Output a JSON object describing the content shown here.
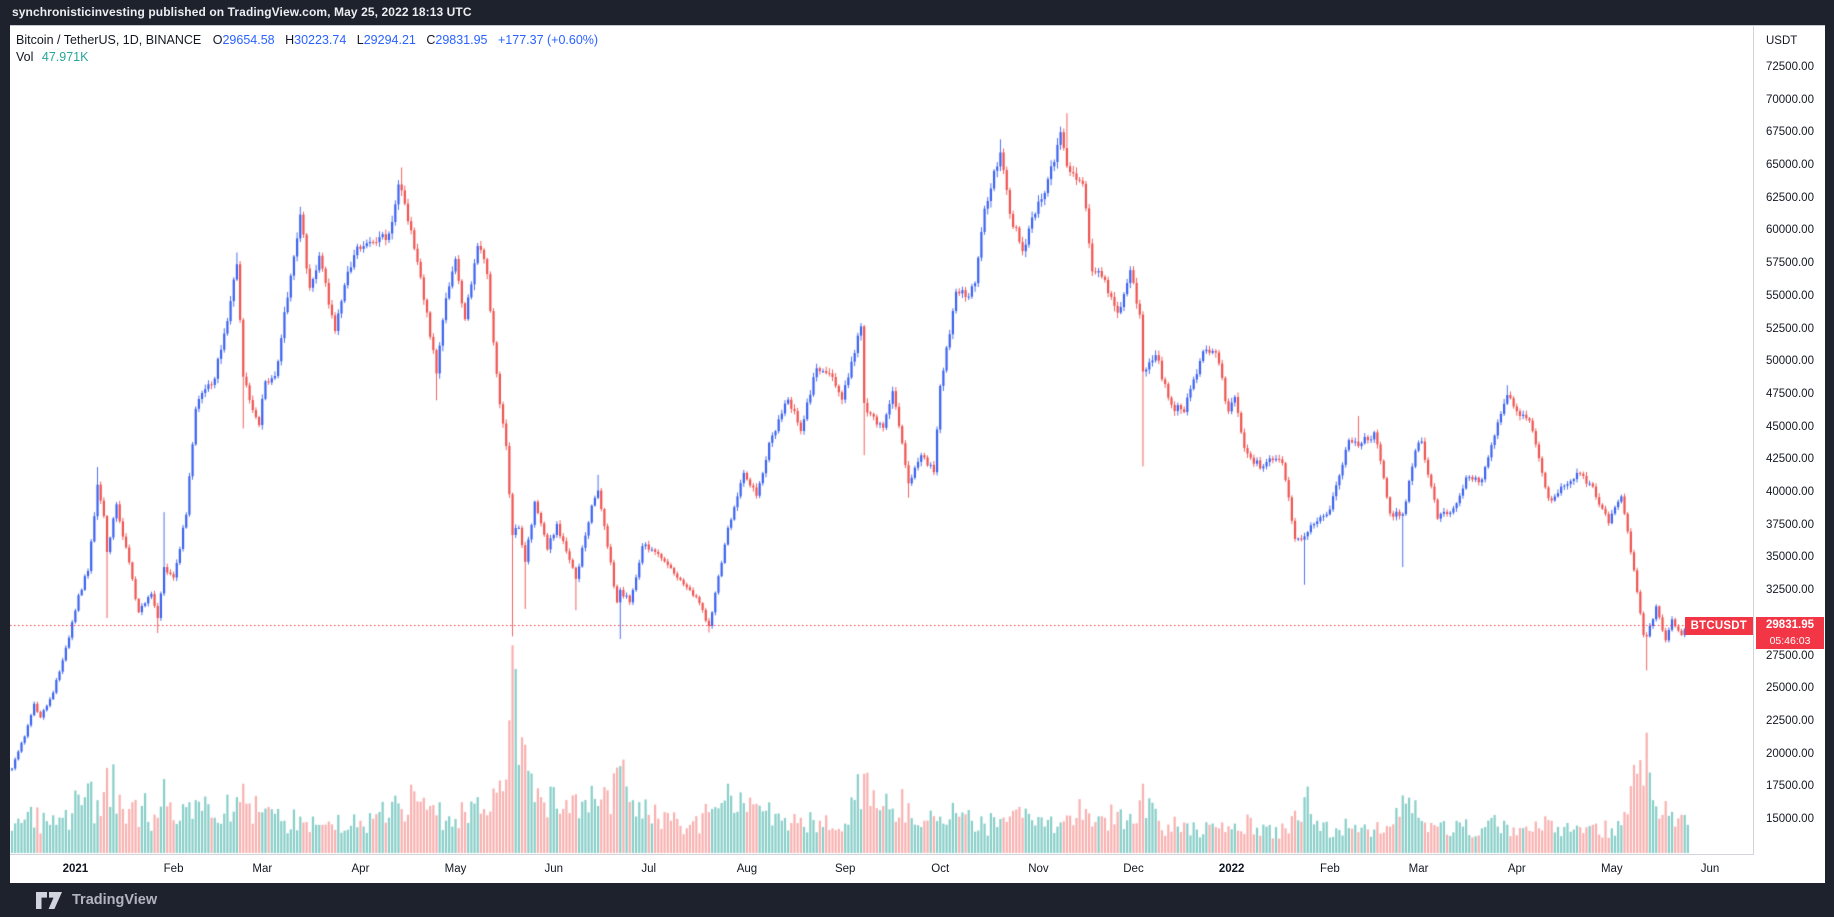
{
  "frame": {
    "attribution": "synchronisticinvesting published on TradingView.com, May 25, 2022 18:13 UTC",
    "footer_brand": "TradingView"
  },
  "legend": {
    "title": "Bitcoin / TetherUS, 1D, BINANCE",
    "ohlc": [
      {
        "k": "O",
        "v": "29654.58"
      },
      {
        "k": "H",
        "v": "30223.74"
      },
      {
        "k": "L",
        "v": "29294.21"
      },
      {
        "k": "C",
        "v": "29831.95"
      }
    ],
    "change": "+177.37 (+0.60%)",
    "vol_label": "Vol",
    "vol_value": "47.971K"
  },
  "price_axis": {
    "currency": "USDT",
    "labels": [
      "72500.00",
      "70000.00",
      "67500.00",
      "65000.00",
      "62500.00",
      "60000.00",
      "57500.00",
      "55000.00",
      "52500.00",
      "50000.00",
      "47500.00",
      "45000.00",
      "42500.00",
      "40000.00",
      "37500.00",
      "35000.00",
      "32500.00",
      "30000.00",
      "27500.00",
      "25000.00",
      "22500.00",
      "20000.00",
      "17500.00",
      "15000.00"
    ],
    "symbol_flag": "BTCUSDT",
    "last_price_label": "29831.95",
    "countdown": "05:46:03"
  },
  "time_axis": {
    "ticks": [
      {
        "label": "2021",
        "date": "2021-01-01",
        "bold": true
      },
      {
        "label": "Feb",
        "date": "2021-02-01",
        "bold": false
      },
      {
        "label": "Mar",
        "date": "2021-03-01",
        "bold": false
      },
      {
        "label": "Apr",
        "date": "2021-04-01",
        "bold": false
      },
      {
        "label": "May",
        "date": "2021-05-01",
        "bold": false
      },
      {
        "label": "Jun",
        "date": "2021-06-01",
        "bold": false
      },
      {
        "label": "Jul",
        "date": "2021-07-01",
        "bold": false
      },
      {
        "label": "Aug",
        "date": "2021-08-01",
        "bold": false
      },
      {
        "label": "Sep",
        "date": "2021-09-01",
        "bold": false
      },
      {
        "label": "Oct",
        "date": "2021-10-01",
        "bold": false
      },
      {
        "label": "Nov",
        "date": "2021-11-01",
        "bold": false
      },
      {
        "label": "Dec",
        "date": "2021-12-01",
        "bold": false
      },
      {
        "label": "2022",
        "date": "2022-01-01",
        "bold": true
      },
      {
        "label": "Feb",
        "date": "2022-02-01",
        "bold": false
      },
      {
        "label": "Mar",
        "date": "2022-03-01",
        "bold": false
      },
      {
        "label": "Apr",
        "date": "2022-04-01",
        "bold": false
      },
      {
        "label": "May",
        "date": "2022-05-01",
        "bold": false
      },
      {
        "label": "Jun",
        "date": "2022-06-01",
        "bold": false
      }
    ]
  },
  "colors": {
    "frame_bg": "#1e222d",
    "candle_up": "#3b62f0",
    "candle_down": "#ef5350",
    "volume_up": "rgba(38,166,154,0.55)",
    "volume_down": "rgba(239,83,80,0.45)",
    "last_price_line": "#f23645",
    "badge_bg": "#f23645",
    "ohlc_value_text": "#2962ff",
    "vol_value_text": "#26a69a",
    "axis_text": "#131722"
  },
  "chart_data": {
    "type": "candlestick",
    "symbol": "BTCUSDT",
    "exchange": "BINANCE",
    "interval": "1D",
    "quote_currency": "USDT",
    "last_price": 29831.95,
    "last_candle": {
      "open": 29654.58,
      "high": 30223.74,
      "low": 29294.21,
      "close": 29831.95,
      "volume_k": 47.971
    },
    "domain": {
      "start_date": "2020-12-12",
      "last_candle_date": "2022-05-25",
      "right_pad_days": 19
    },
    "y_axis": {
      "min": 15000,
      "max": 72500,
      "tick_step": 2500,
      "grid": false
    },
    "volume_axis": {
      "max_k": 354
    },
    "price_path": [
      [
        "2020-12-12",
        18900
      ],
      [
        "2020-12-16",
        21350
      ],
      [
        "2020-12-19",
        23850
      ],
      [
        "2020-12-21",
        22800
      ],
      [
        "2020-12-25",
        24700
      ],
      [
        "2020-12-27",
        26300
      ],
      [
        "2020-12-30",
        28900
      ],
      [
        "2021-01-02",
        32150
      ],
      [
        "2021-01-05",
        34000
      ],
      [
        "2021-01-08",
        40600,
        41950,
        null
      ],
      [
        "2021-01-10",
        38200
      ],
      [
        "2021-01-11",
        35450,
        null,
        30400
      ],
      [
        "2021-01-14",
        39100
      ],
      [
        "2021-01-17",
        35800
      ],
      [
        "2021-01-21",
        30850
      ],
      [
        "2021-01-25",
        32250
      ],
      [
        "2021-01-27",
        30400,
        null,
        29250
      ],
      [
        "2021-01-29",
        34300,
        38500,
        null
      ],
      [
        "2021-02-01",
        33500
      ],
      [
        "2021-02-05",
        38300
      ],
      [
        "2021-02-08",
        46400
      ],
      [
        "2021-02-11",
        47900
      ],
      [
        "2021-02-14",
        48700
      ],
      [
        "2021-02-17",
        52150
      ],
      [
        "2021-02-21",
        57450,
        58350,
        null
      ],
      [
        "2021-02-23",
        48850,
        null,
        44900
      ],
      [
        "2021-02-26",
        46300
      ],
      [
        "2021-02-28",
        45150
      ],
      [
        "2021-03-02",
        48500
      ],
      [
        "2021-03-05",
        48900
      ],
      [
        "2021-03-09",
        54900
      ],
      [
        "2021-03-13",
        61250,
        61850,
        null
      ],
      [
        "2021-03-16",
        55650
      ],
      [
        "2021-03-19",
        58100
      ],
      [
        "2021-03-24",
        52350
      ],
      [
        "2021-03-27",
        55850
      ],
      [
        "2021-03-31",
        58800
      ],
      [
        "2021-04-05",
        59150
      ],
      [
        "2021-04-10",
        59800
      ],
      [
        "2021-04-13",
        63550
      ],
      [
        "2021-04-14",
        63100,
        64850,
        null
      ],
      [
        "2021-04-17",
        60050
      ],
      [
        "2021-04-20",
        56450
      ],
      [
        "2021-04-25",
        49100,
        null,
        47050
      ],
      [
        "2021-04-28",
        54850
      ],
      [
        "2021-05-01",
        57850
      ],
      [
        "2021-05-04",
        53250
      ],
      [
        "2021-05-08",
        58850
      ],
      [
        "2021-05-11",
        56700
      ],
      [
        "2021-05-15",
        46750
      ],
      [
        "2021-05-17",
        43550
      ],
      [
        "2021-05-19",
        36750,
        null,
        29000
      ],
      [
        "2021-05-21",
        37300
      ],
      [
        "2021-05-23",
        34700,
        null,
        31100
      ],
      [
        "2021-05-26",
        39300
      ],
      [
        "2021-05-30",
        35650
      ],
      [
        "2021-06-02",
        37600
      ],
      [
        "2021-06-05",
        35500
      ],
      [
        "2021-06-08",
        33400,
        null,
        31000
      ],
      [
        "2021-06-13",
        39000
      ],
      [
        "2021-06-15",
        40150,
        41350,
        null
      ],
      [
        "2021-06-18",
        35850
      ],
      [
        "2021-06-21",
        31600
      ],
      [
        "2021-06-22",
        32550,
        null,
        28800
      ],
      [
        "2021-06-25",
        31600
      ],
      [
        "2021-06-29",
        35900
      ],
      [
        "2021-07-04",
        35300
      ],
      [
        "2021-07-09",
        33800
      ],
      [
        "2021-07-13",
        32750
      ],
      [
        "2021-07-17",
        31550
      ],
      [
        "2021-07-20",
        29800,
        null,
        29300
      ],
      [
        "2021-07-23",
        33600
      ],
      [
        "2021-07-26",
        37300
      ],
      [
        "2021-07-31",
        41500
      ],
      [
        "2021-08-04",
        39750
      ],
      [
        "2021-08-08",
        43800
      ],
      [
        "2021-08-11",
        45600
      ],
      [
        "2021-08-14",
        47100
      ],
      [
        "2021-08-18",
        44700
      ],
      [
        "2021-08-23",
        49500
      ],
      [
        "2021-08-27",
        49100
      ],
      [
        "2021-08-31",
        47100
      ],
      [
        "2021-09-03",
        50000
      ],
      [
        "2021-09-06",
        52700,
        52950,
        null
      ],
      [
        "2021-09-07",
        46850,
        null,
        42850
      ],
      [
        "2021-09-11",
        45200
      ],
      [
        "2021-09-13",
        44950
      ],
      [
        "2021-09-16",
        47750
      ],
      [
        "2021-09-21",
        40700,
        null,
        39600
      ],
      [
        "2021-09-25",
        42850
      ],
      [
        "2021-09-29",
        41550
      ],
      [
        "2021-10-01",
        48150
      ],
      [
        "2021-10-06",
        55350
      ],
      [
        "2021-10-09",
        54950
      ],
      [
        "2021-10-12",
        56000
      ],
      [
        "2021-10-15",
        61700
      ],
      [
        "2021-10-20",
        66000,
        67000,
        null
      ],
      [
        "2021-10-23",
        61300
      ],
      [
        "2021-10-27",
        58450
      ],
      [
        "2021-10-31",
        61300
      ],
      [
        "2021-11-03",
        62900
      ],
      [
        "2021-11-08",
        67550
      ],
      [
        "2021-11-10",
        64950,
        69000,
        null
      ],
      [
        "2021-11-12",
        64400
      ],
      [
        "2021-11-15",
        63600
      ],
      [
        "2021-11-18",
        56900
      ],
      [
        "2021-11-22",
        56250
      ],
      [
        "2021-11-26",
        53750
      ],
      [
        "2021-11-30",
        57000
      ],
      [
        "2021-12-03",
        53600
      ],
      [
        "2021-12-04",
        49250,
        null,
        42000
      ],
      [
        "2021-12-08",
        50500
      ],
      [
        "2021-12-13",
        46700
      ],
      [
        "2021-12-17",
        46150
      ],
      [
        "2021-12-23",
        50800
      ],
      [
        "2021-12-27",
        50700
      ],
      [
        "2021-12-31",
        46200
      ],
      [
        "2022-01-02",
        47300
      ],
      [
        "2022-01-05",
        43400
      ],
      [
        "2022-01-10",
        41850
      ],
      [
        "2022-01-13",
        42600
      ],
      [
        "2022-01-17",
        42250
      ],
      [
        "2022-01-21",
        36450
      ],
      [
        "2022-01-24",
        36650,
        null,
        32950
      ],
      [
        "2022-01-28",
        37800
      ],
      [
        "2022-02-01",
        38700
      ],
      [
        "2022-02-07",
        44000
      ],
      [
        "2022-02-10",
        43550,
        45850,
        null
      ],
      [
        "2022-02-15",
        44600
      ],
      [
        "2022-02-20",
        38400
      ],
      [
        "2022-02-24",
        38350,
        null,
        34300
      ],
      [
        "2022-02-28",
        43200
      ],
      [
        "2022-03-02",
        43900
      ],
      [
        "2022-03-07",
        38000
      ],
      [
        "2022-03-12",
        38800
      ],
      [
        "2022-03-16",
        41150
      ],
      [
        "2022-03-21",
        41000
      ],
      [
        "2022-03-25",
        44350
      ],
      [
        "2022-03-29",
        47450,
        48200,
        null
      ],
      [
        "2022-04-02",
        45850
      ],
      [
        "2022-04-05",
        45500
      ],
      [
        "2022-04-11",
        39550
      ],
      [
        "2022-04-14",
        39950
      ],
      [
        "2022-04-20",
        41500
      ],
      [
        "2022-04-25",
        40450
      ],
      [
        "2022-04-30",
        37650
      ],
      [
        "2022-05-04",
        39700
      ],
      [
        "2022-05-08",
        34050
      ],
      [
        "2022-05-11",
        29100
      ],
      [
        "2022-05-12",
        29000,
        null,
        26400
      ],
      [
        "2022-05-15",
        31300
      ],
      [
        "2022-05-18",
        28700
      ],
      [
        "2022-05-20",
        30300
      ],
      [
        "2022-05-23",
        29100
      ],
      [
        "2022-05-25",
        29831.95
      ]
    ],
    "volume_path_k": [
      [
        "2020-12-12",
        38
      ],
      [
        "2020-12-17",
        70
      ],
      [
        "2020-12-26",
        48
      ],
      [
        "2021-01-04",
        95
      ],
      [
        "2021-01-08",
        90
      ],
      [
        "2021-01-11",
        145
      ],
      [
        "2021-01-16",
        75
      ],
      [
        "2021-01-22",
        80
      ],
      [
        "2021-01-27",
        60
      ],
      [
        "2021-01-29",
        126
      ],
      [
        "2021-02-03",
        55
      ],
      [
        "2021-02-08",
        90
      ],
      [
        "2021-02-14",
        60
      ],
      [
        "2021-02-23",
        118
      ],
      [
        "2021-02-28",
        70
      ],
      [
        "2021-03-08",
        55
      ],
      [
        "2021-03-13",
        62
      ],
      [
        "2021-03-20",
        48
      ],
      [
        "2021-03-25",
        65
      ],
      [
        "2021-04-02",
        45
      ],
      [
        "2021-04-07",
        70
      ],
      [
        "2021-04-14",
        75
      ],
      [
        "2021-04-18",
        105
      ],
      [
        "2021-04-23",
        80
      ],
      [
        "2021-04-28",
        55
      ],
      [
        "2021-05-04",
        70
      ],
      [
        "2021-05-10",
        75
      ],
      [
        "2021-05-13",
        110
      ],
      [
        "2021-05-17",
        125
      ],
      [
        "2021-05-19",
        354
      ],
      [
        "2021-05-21",
        150
      ],
      [
        "2021-05-24",
        140
      ],
      [
        "2021-05-28",
        95
      ],
      [
        "2021-06-04",
        75
      ],
      [
        "2021-06-08",
        100
      ],
      [
        "2021-06-15",
        80
      ],
      [
        "2021-06-22",
        148
      ],
      [
        "2021-06-26",
        90
      ],
      [
        "2021-07-01",
        65
      ],
      [
        "2021-07-08",
        55
      ],
      [
        "2021-07-14",
        48
      ],
      [
        "2021-07-21",
        75
      ],
      [
        "2021-07-26",
        118
      ],
      [
        "2021-08-01",
        70
      ],
      [
        "2021-08-07",
        72
      ],
      [
        "2021-08-12",
        55
      ],
      [
        "2021-08-18",
        60
      ],
      [
        "2021-08-24",
        55
      ],
      [
        "2021-09-01",
        50
      ],
      [
        "2021-09-07",
        135
      ],
      [
        "2021-09-13",
        80
      ],
      [
        "2021-09-21",
        85
      ],
      [
        "2021-09-26",
        55
      ],
      [
        "2021-10-01",
        62
      ],
      [
        "2021-10-06",
        68
      ],
      [
        "2021-10-11",
        55
      ],
      [
        "2021-10-15",
        50
      ],
      [
        "2021-10-20",
        58
      ],
      [
        "2021-10-27",
        60
      ],
      [
        "2021-11-03",
        45
      ],
      [
        "2021-11-08",
        52
      ],
      [
        "2021-11-10",
        64
      ],
      [
        "2021-11-16",
        75
      ],
      [
        "2021-11-22",
        60
      ],
      [
        "2021-11-26",
        70
      ],
      [
        "2021-12-01",
        50
      ],
      [
        "2021-12-04",
        118
      ],
      [
        "2021-12-09",
        55
      ],
      [
        "2021-12-15",
        45
      ],
      [
        "2021-12-21",
        40
      ],
      [
        "2021-12-28",
        42
      ],
      [
        "2022-01-03",
        38
      ],
      [
        "2022-01-07",
        60
      ],
      [
        "2022-01-12",
        45
      ],
      [
        "2022-01-18",
        42
      ],
      [
        "2022-01-21",
        72
      ],
      [
        "2022-01-24",
        95
      ],
      [
        "2022-01-28",
        55
      ],
      [
        "2022-02-03",
        42
      ],
      [
        "2022-02-09",
        48
      ],
      [
        "2022-02-15",
        40
      ],
      [
        "2022-02-20",
        45
      ],
      [
        "2022-02-24",
        98
      ],
      [
        "2022-03-01",
        60
      ],
      [
        "2022-03-08",
        52
      ],
      [
        "2022-03-15",
        45
      ],
      [
        "2022-03-21",
        42
      ],
      [
        "2022-03-28",
        55
      ],
      [
        "2022-04-04",
        45
      ],
      [
        "2022-04-08",
        42
      ],
      [
        "2022-04-12",
        55
      ],
      [
        "2022-04-19",
        40
      ],
      [
        "2022-04-25",
        48
      ],
      [
        "2022-05-01",
        42
      ],
      [
        "2022-05-05",
        70
      ],
      [
        "2022-05-09",
        135
      ],
      [
        "2022-05-12",
        205
      ],
      [
        "2022-05-14",
        90
      ],
      [
        "2022-05-17",
        65
      ],
      [
        "2022-05-20",
        70
      ],
      [
        "2022-05-25",
        47.971
      ]
    ]
  }
}
